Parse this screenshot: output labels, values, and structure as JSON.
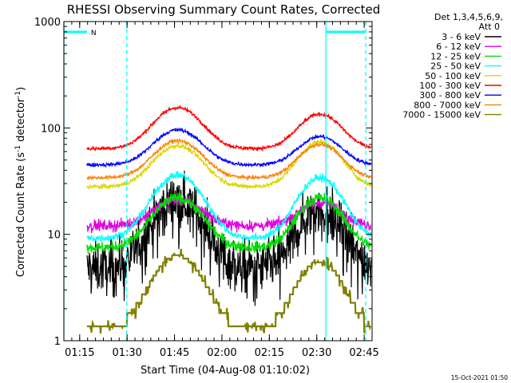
{
  "chart_data": {
    "type": "line",
    "title": "RHESSI Observing Summary Count Rates, Corrected",
    "xlabel": "Start Time (04-Aug-08 01:10:02)",
    "ylabel_parts": [
      "Corrected Count Rate (s",
      "-1",
      " detector",
      "-1",
      ")"
    ],
    "y_scale": "log",
    "ylim": [
      1,
      1000
    ],
    "y_ticks": [
      {
        "value": 1,
        "label": "1"
      },
      {
        "value": 10,
        "label": "10"
      },
      {
        "value": 100,
        "label": "100"
      },
      {
        "value": 1000,
        "label": "1000"
      }
    ],
    "x_ticks": [
      {
        "minutes": 5,
        "label": "01:15"
      },
      {
        "minutes": 20,
        "label": "01:30"
      },
      {
        "minutes": 35,
        "label": "01:45"
      },
      {
        "minutes": 50,
        "label": "02:00"
      },
      {
        "minutes": 65,
        "label": "02:15"
      },
      {
        "minutes": 80,
        "label": "02:30"
      },
      {
        "minutes": 95,
        "label": "02:45"
      }
    ],
    "xlim": [
      0,
      97.5
    ],
    "detectors_label": "Det 1,3,4,5,6,9,",
    "attenuator_label": "Att 0",
    "night_marker_label": "N",
    "timestamp": "15-Oct-2021 01:50",
    "orbit": {
      "day_start_min": 0,
      "night1": [
        7.3,
        19.9
      ],
      "night2": [
        82.9,
        95.5
      ],
      "data_end_min": 97.3
    },
    "series": [
      {
        "name": "3 - 6 keV",
        "color": "#000000",
        "baseline": 4.8,
        "peak1": 21,
        "peak2": 17,
        "noise": 0.55
      },
      {
        "name": "6 - 12 keV",
        "color": "#e000e0",
        "baseline": 12,
        "peak1": 21,
        "peak2": 20,
        "noise": 0.12
      },
      {
        "name": "12 - 25 keV",
        "color": "#00dd00",
        "baseline": 7.5,
        "peak1": 22,
        "peak2": 22,
        "noise": 0.12
      },
      {
        "name": "25 - 50 keV",
        "color": "#00ffff",
        "baseline": 9.2,
        "peak1": 36,
        "peak2": 34,
        "noise": 0.08
      },
      {
        "name": "50 - 100 keV",
        "color": "#d8d800",
        "baseline": 28,
        "peak1": 68,
        "peak2": 74,
        "noise": 0.05
      },
      {
        "name": "100 - 300 keV",
        "color": "#ff0000",
        "baseline": 64,
        "peak1": 155,
        "peak2": 135,
        "noise": 0.04
      },
      {
        "name": "300 - 800 keV",
        "color": "#0000ff",
        "baseline": 45,
        "peak1": 96,
        "peak2": 83,
        "noise": 0.04
      },
      {
        "name": "800 - 7000 keV",
        "color": "#ff7f00",
        "baseline": 34,
        "peak1": 76,
        "peak2": 70,
        "noise": 0.04
      },
      {
        "name": "7000 - 15000 keV",
        "color": "#808000",
        "baseline": 1.3,
        "peak1": 6.3,
        "peak2": 5.6,
        "noise": 0
      }
    ]
  }
}
